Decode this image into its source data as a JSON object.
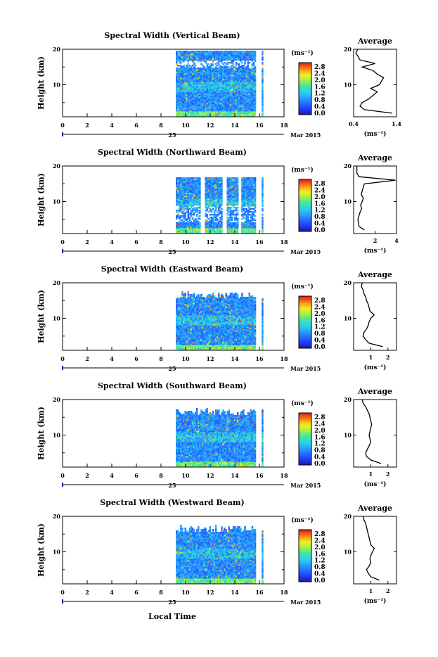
{
  "figure": {
    "x_axis_title": "Local Time",
    "date_day": "25",
    "date_month_year": "Mar 2015",
    "x_ticks": [
      "0",
      "2",
      "4",
      "6",
      "8",
      "10",
      "12",
      "14",
      "16",
      "18"
    ],
    "y_label": "Height (km)",
    "colorbar_unit": "(ms⁻¹)",
    "colorbar_ticks": [
      "2.8",
      "2.4",
      "2.0",
      "1.6",
      "1.2",
      "0.8",
      "0.4",
      "0.0"
    ],
    "profile_title": "Average",
    "profile_unit": "(ms⁻¹)"
  },
  "chart_data": [
    {
      "type": "heatmap",
      "title": "Spectral Width (Vertical Beam)",
      "xlabel": "",
      "ylabel": "Height (km)",
      "xlim": [
        0,
        18
      ],
      "ylim": [
        1,
        20
      ],
      "y_ticks": [
        "20",
        "10"
      ],
      "color_range": [
        0.0,
        3.0
      ],
      "profile": {
        "title": "Average",
        "xlim": [
          0.4,
          1.4
        ],
        "x_ticks": [
          "0.4",
          "1.4"
        ],
        "height_km": [
          2,
          3,
          4,
          5,
          6,
          7,
          8,
          9,
          10,
          11,
          12,
          13,
          14,
          15,
          16,
          17,
          18,
          19,
          20
        ],
        "value": [
          1.3,
          0.65,
          0.55,
          0.6,
          0.75,
          0.85,
          0.95,
          0.8,
          1.0,
          1.05,
          1.1,
          0.95,
          0.85,
          0.6,
          0.9,
          0.55,
          0.5,
          0.45,
          0.5
        ]
      }
    },
    {
      "type": "heatmap",
      "title": "Spectral Width (Northward Beam)",
      "xlabel": "",
      "ylabel": "Height (km)",
      "xlim": [
        0,
        18
      ],
      "ylim": [
        1,
        20
      ],
      "y_ticks": [
        "20",
        "10"
      ],
      "color_range": [
        0.0,
        3.0
      ],
      "profile": {
        "title": "Average",
        "xlim": [
          0,
          4
        ],
        "x_ticks": [
          "2",
          "4"
        ],
        "height_km": [
          2,
          3,
          4,
          5,
          6,
          7,
          8,
          9,
          10,
          11,
          12,
          13,
          14,
          15,
          16,
          17,
          18,
          19,
          20
        ],
        "value": [
          1.0,
          0.5,
          0.45,
          0.4,
          0.5,
          0.6,
          0.75,
          0.65,
          0.8,
          0.9,
          0.7,
          0.8,
          0.9,
          1.0,
          3.9,
          0.5,
          0.3,
          0.3,
          0.3
        ]
      }
    },
    {
      "type": "heatmap",
      "title": "Spectral Width (Eastward Beam)",
      "xlabel": "",
      "ylabel": "Height (km)",
      "xlim": [
        0,
        18
      ],
      "ylim": [
        1,
        20
      ],
      "y_ticks": [
        "20",
        "10"
      ],
      "color_range": [
        0.0,
        3.0
      ],
      "profile": {
        "title": "Average",
        "xlim": [
          0,
          2.5
        ],
        "x_ticks": [
          "1",
          "2"
        ],
        "height_km": [
          2,
          3,
          4,
          5,
          6,
          7,
          8,
          9,
          10,
          11,
          12,
          13,
          14,
          15,
          16,
          17,
          18,
          19,
          20
        ],
        "value": [
          1.7,
          0.9,
          0.7,
          0.55,
          0.6,
          0.75,
          0.85,
          0.9,
          1.0,
          1.2,
          0.95,
          0.9,
          0.85,
          0.75,
          0.7,
          0.6,
          0.55,
          0.45,
          0.5
        ]
      }
    },
    {
      "type": "heatmap",
      "title": "Spectral Width (Southward Beam)",
      "xlabel": "",
      "ylabel": "Height (km)",
      "xlim": [
        0,
        18
      ],
      "ylim": [
        1,
        20
      ],
      "y_ticks": [
        "20",
        "10"
      ],
      "color_range": [
        0.0,
        3.0
      ],
      "profile": {
        "title": "Average",
        "xlim": [
          0,
          2.5
        ],
        "x_ticks": [
          "1",
          "2"
        ],
        "height_km": [
          2,
          3,
          4,
          5,
          6,
          7,
          8,
          9,
          10,
          11,
          12,
          13,
          14,
          15,
          16,
          17,
          18,
          19,
          20
        ],
        "value": [
          1.6,
          1.0,
          0.75,
          0.7,
          0.8,
          0.9,
          1.0,
          0.95,
          0.9,
          0.95,
          1.0,
          1.05,
          1.0,
          0.95,
          0.9,
          0.8,
          0.7,
          0.55,
          0.5
        ]
      }
    },
    {
      "type": "heatmap",
      "title": "Spectral Width (Westward Beam)",
      "xlabel": "Local Time",
      "ylabel": "Height (km)",
      "xlim": [
        0,
        18
      ],
      "ylim": [
        1,
        20
      ],
      "y_ticks": [
        "20",
        "10"
      ],
      "color_range": [
        0.0,
        3.0
      ],
      "profile": {
        "title": "Average",
        "xlim": [
          0,
          2.5
        ],
        "x_ticks": [
          "1",
          "2"
        ],
        "height_km": [
          2,
          3,
          4,
          5,
          6,
          7,
          8,
          9,
          10,
          11,
          12,
          13,
          14,
          15,
          16,
          17,
          18,
          19,
          20
        ],
        "value": [
          1.5,
          1.0,
          0.85,
          0.75,
          0.9,
          1.0,
          0.95,
          1.0,
          1.1,
          1.2,
          1.0,
          0.95,
          0.9,
          0.85,
          0.8,
          0.75,
          0.7,
          0.6,
          0.55
        ]
      }
    }
  ]
}
